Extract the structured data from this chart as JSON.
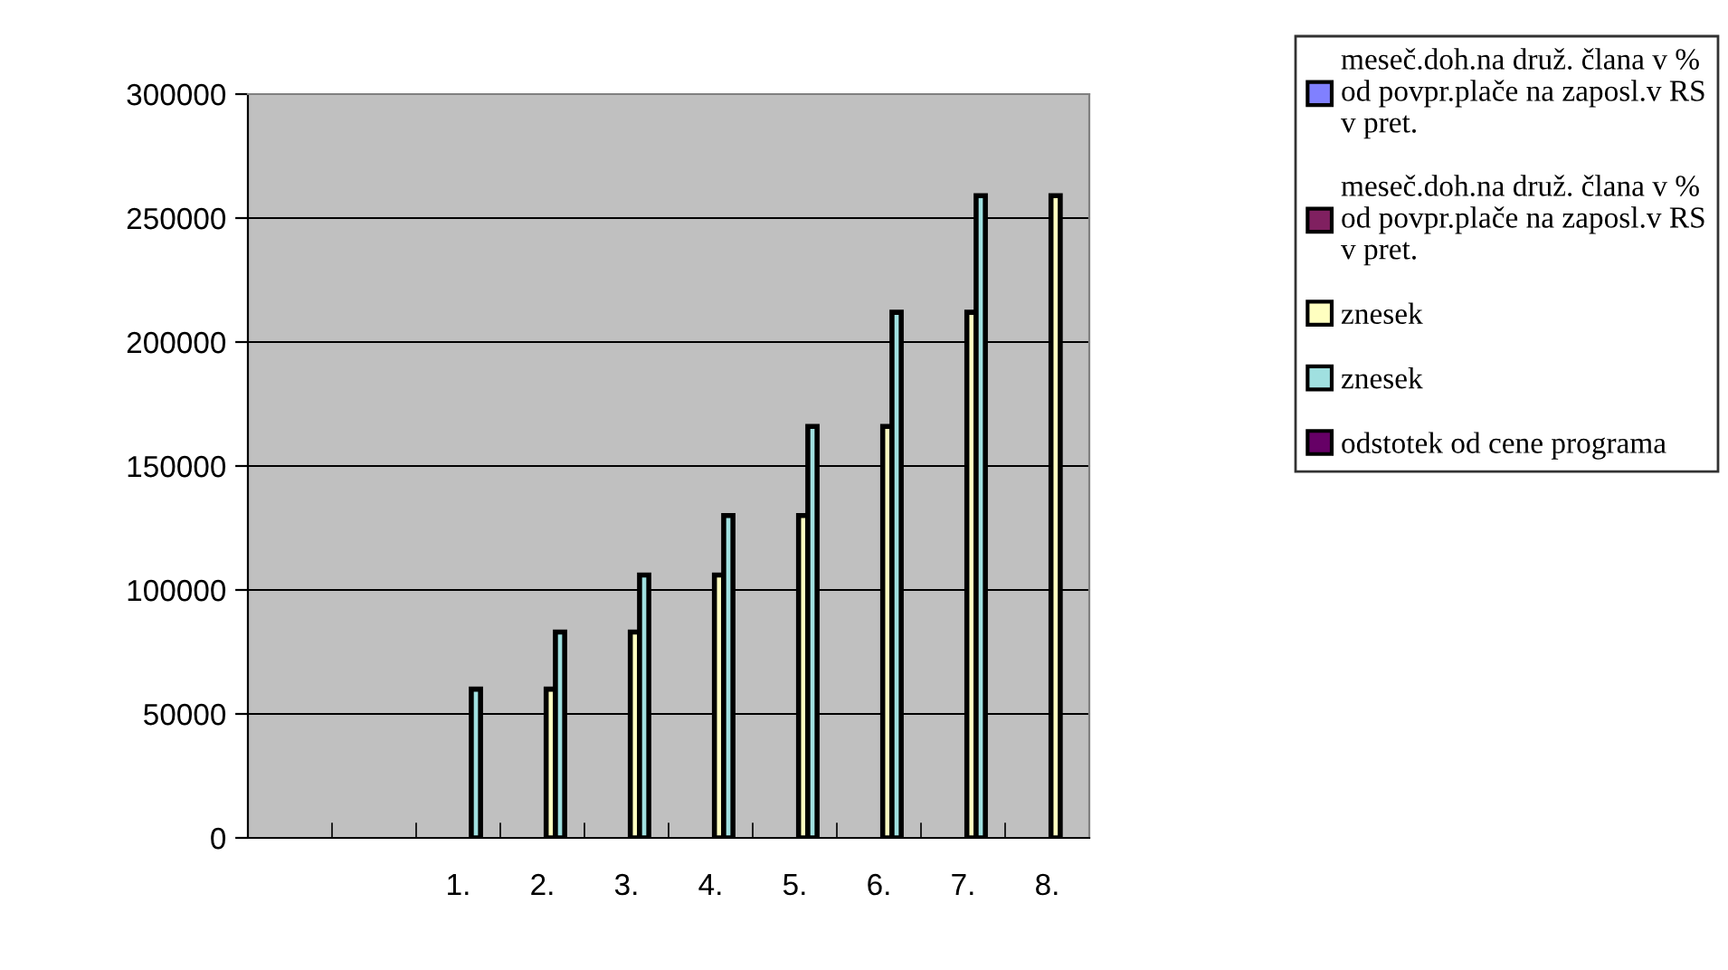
{
  "chart_data": {
    "type": "bar",
    "categories": [
      null,
      null,
      "1.",
      "2.",
      "3.",
      "4.",
      "5.",
      "6.",
      "7.",
      "8."
    ],
    "series": [
      {
        "name": "meseč.doh.na druž. člana v % od povpr.plače na zaposl.v RS v pret.",
        "color": "#8080ff",
        "values": [
          null,
          null,
          null,
          null,
          null,
          null,
          null,
          null,
          null,
          null
        ]
      },
      {
        "name": "meseč.doh.na druž. člana v % od povpr.plače na zaposl.v RS v pret.",
        "color": "#802060",
        "values": [
          null,
          null,
          null,
          null,
          null,
          null,
          null,
          null,
          null,
          null
        ]
      },
      {
        "name": "znesek",
        "color": "#ffffc0",
        "values": [
          null,
          null,
          null,
          60000,
          83000,
          106000,
          130000,
          166000,
          212000,
          259000
        ]
      },
      {
        "name": "znesek",
        "color": "#a0e0e0",
        "values": [
          null,
          null,
          60000,
          83000,
          106000,
          130000,
          166000,
          212000,
          259000,
          null
        ]
      },
      {
        "name": "odstotek od cene programa",
        "color": "#660066",
        "values": [
          null,
          null,
          null,
          null,
          null,
          null,
          null,
          null,
          null,
          null
        ]
      }
    ],
    "ylim": [
      0,
      300000
    ],
    "yticks": [
      0,
      50000,
      100000,
      150000,
      200000,
      250000,
      300000
    ],
    "grid": "y",
    "legend": "right"
  }
}
